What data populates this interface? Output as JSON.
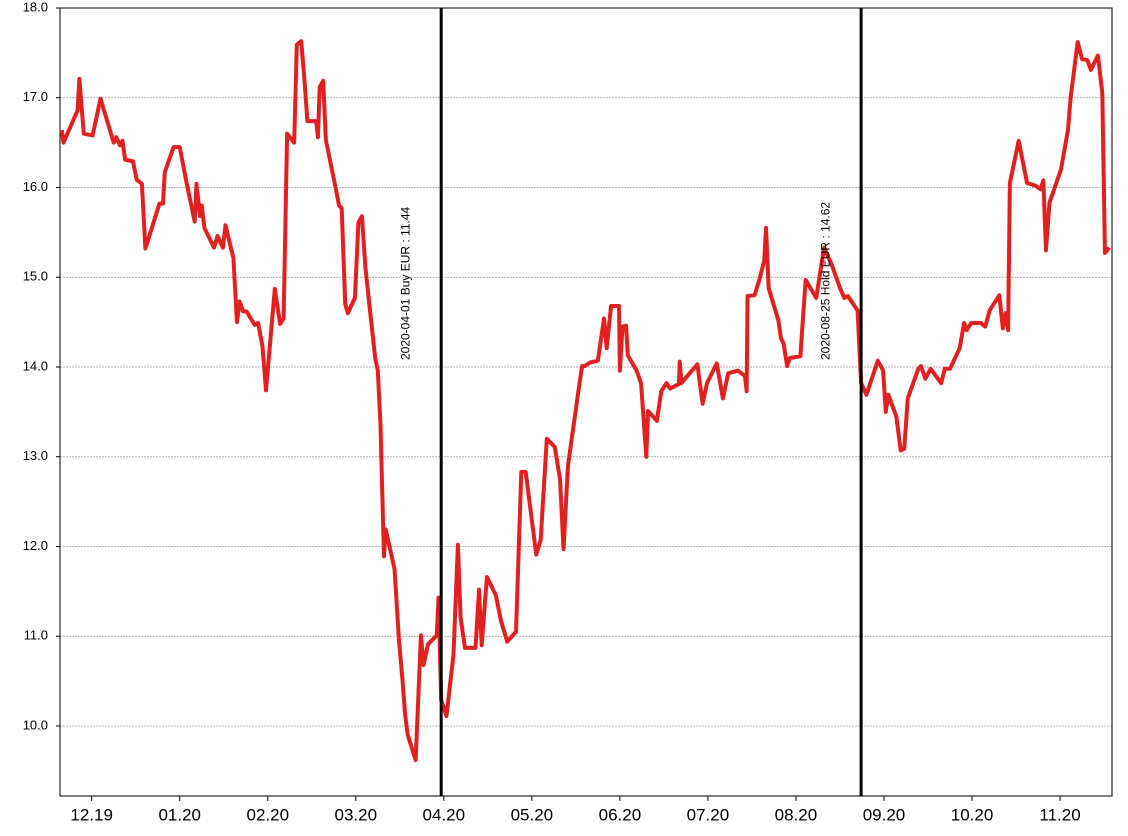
{
  "chart_data": {
    "type": "line",
    "x": [
      -0.34,
      -0.32,
      -0.16,
      -0.14,
      -0.09,
      0.01,
      0.1,
      0.25,
      0.28,
      0.32,
      0.35,
      0.38,
      0.47,
      0.51,
      0.57,
      0.61,
      0.77,
      0.81,
      0.83,
      0.93,
      1.0,
      1.07,
      1.17,
      1.19,
      1.23,
      1.25,
      1.28,
      1.39,
      1.43,
      1.49,
      1.52,
      1.61,
      1.65,
      1.68,
      1.72,
      1.76,
      1.85,
      1.89,
      1.94,
      1.98,
      2.08,
      2.14,
      2.18,
      2.22,
      2.3,
      2.33,
      2.38,
      2.42,
      2.45,
      2.55,
      2.57,
      2.59,
      2.63,
      2.66,
      2.76,
      2.81,
      2.84,
      2.88,
      2.91,
      2.99,
      3.03,
      3.07,
      3.11,
      3.22,
      3.25,
      3.28,
      3.32,
      3.34,
      3.44,
      3.49,
      3.53,
      3.56,
      3.59,
      3.68,
      3.74,
      3.77,
      3.82,
      3.92,
      3.94,
      3.97,
      4.03,
      4.11,
      4.16,
      4.19,
      4.24,
      4.36,
      4.4,
      4.43,
      4.49,
      4.59,
      4.65,
      4.72,
      4.82,
      4.88,
      4.93,
      5.05,
      5.1,
      5.17,
      5.26,
      5.32,
      5.36,
      5.41,
      5.52,
      5.57,
      5.6,
      5.66,
      5.75,
      5.82,
      5.85,
      5.9,
      5.99,
      6.0,
      6.03,
      6.07,
      6.09,
      6.19,
      6.24,
      6.3,
      6.32,
      6.42,
      6.47,
      6.53,
      6.57,
      6.67,
      6.68,
      6.7,
      6.74,
      6.88,
      6.94,
      6.99,
      7.1,
      7.17,
      7.23,
      7.34,
      7.42,
      7.44,
      7.45,
      7.53,
      7.59,
      7.64,
      7.66,
      7.69,
      7.8,
      7.83,
      7.86,
      7.9,
      7.93,
      8.05,
      8.11,
      8.23,
      8.32,
      8.41,
      8.5,
      8.55,
      8.59,
      8.7,
      8.74,
      8.8,
      8.93,
      8.99,
      9.02,
      9.05,
      9.14,
      9.19,
      9.23,
      9.27,
      9.39,
      9.42,
      9.47,
      9.53,
      9.65,
      9.69,
      9.75,
      9.86,
      9.91,
      9.94,
      9.99,
      10.1,
      10.15,
      10.2,
      10.31,
      10.35,
      10.38,
      10.41,
      10.43,
      10.53,
      10.625,
      10.72,
      10.78,
      10.81,
      10.84,
      10.88,
      11.01,
      11.09,
      11.12,
      11.2,
      11.25,
      11.31,
      11.35,
      11.43,
      11.48,
      11.51,
      11.56
    ],
    "series": [
      {
        "color": "#e32020",
        "values": [
          16.64,
          16.5,
          16.86,
          17.21,
          16.6,
          16.58,
          16.99,
          16.5,
          16.56,
          16.47,
          16.52,
          16.31,
          16.29,
          16.09,
          16.04,
          15.32,
          15.82,
          15.82,
          16.17,
          16.45,
          16.45,
          16.09,
          15.62,
          16.04,
          15.68,
          15.8,
          15.55,
          15.33,
          15.46,
          15.33,
          15.58,
          15.21,
          14.5,
          14.73,
          14.62,
          14.62,
          14.47,
          14.49,
          14.23,
          13.74,
          14.87,
          14.48,
          14.54,
          16.6,
          16.5,
          17.59,
          17.63,
          17.16,
          16.74,
          16.74,
          16.56,
          17.12,
          17.19,
          16.53,
          16.05,
          15.8,
          15.77,
          14.7,
          14.6,
          14.77,
          15.61,
          15.68,
          15.1,
          14.1,
          13.96,
          13.37,
          11.89,
          12.19,
          11.75,
          10.96,
          10.52,
          10.13,
          9.9,
          9.62,
          11.01,
          10.68,
          10.91,
          11.01,
          11.43,
          10.29,
          10.11,
          10.8,
          12.02,
          11.21,
          10.87,
          10.87,
          11.52,
          10.9,
          11.66,
          11.46,
          11.17,
          10.94,
          11.05,
          12.83,
          12.83,
          11.91,
          12.07,
          13.2,
          13.11,
          12.75,
          11.97,
          12.9,
          13.67,
          14.01,
          14.01,
          14.05,
          14.07,
          14.54,
          14.21,
          14.68,
          14.68,
          13.96,
          14.45,
          14.46,
          14.13,
          13.96,
          13.82,
          13.0,
          13.51,
          13.4,
          13.73,
          13.82,
          13.76,
          13.81,
          14.06,
          13.82,
          13.87,
          14.03,
          13.59,
          13.82,
          14.04,
          13.65,
          13.93,
          13.96,
          13.9,
          13.73,
          14.79,
          14.8,
          14.99,
          15.19,
          15.55,
          14.88,
          14.52,
          14.32,
          14.26,
          14.01,
          14.1,
          14.12,
          14.97,
          14.77,
          15.33,
          15.13,
          14.88,
          14.77,
          14.79,
          14.63,
          13.82,
          13.69,
          14.07,
          13.96,
          13.5,
          13.69,
          13.45,
          13.07,
          13.09,
          13.65,
          13.98,
          14.01,
          13.87,
          13.98,
          13.82,
          13.98,
          13.98,
          14.21,
          14.49,
          14.41,
          14.49,
          14.49,
          14.45,
          14.63,
          14.8,
          14.43,
          14.6,
          14.41,
          16.05,
          16.52,
          16.05,
          16.02,
          15.98,
          16.08,
          15.3,
          15.83,
          16.2,
          16.64,
          17.0,
          17.62,
          17.43,
          17.42,
          17.31,
          17.47,
          17.05,
          15.27,
          15.33
        ]
      }
    ],
    "xlim": [
      -0.36,
      11.59
    ],
    "xticks": [
      {
        "value": 0,
        "label": "12.19"
      },
      {
        "value": 1,
        "label": "01.20"
      },
      {
        "value": 2,
        "label": "02.20"
      },
      {
        "value": 3,
        "label": "03.20"
      },
      {
        "value": 4,
        "label": "04.20"
      },
      {
        "value": 5,
        "label": "05.20"
      },
      {
        "value": 6,
        "label": "06.20"
      },
      {
        "value": 7,
        "label": "07.20"
      },
      {
        "value": 8,
        "label": "08.20"
      },
      {
        "value": 9,
        "label": "09.20"
      },
      {
        "value": 10,
        "label": "10.20"
      },
      {
        "value": 11,
        "label": "11.20"
      }
    ],
    "ylim": [
      9.22,
      18.0
    ],
    "yticks": [
      {
        "value": 10,
        "label": "10.0"
      },
      {
        "value": 11,
        "label": "11.0"
      },
      {
        "value": 12,
        "label": "12.0"
      },
      {
        "value": 13,
        "label": "13.0"
      },
      {
        "value": 14,
        "label": "14.0"
      },
      {
        "value": 15,
        "label": "15.0"
      },
      {
        "value": 16,
        "label": "16.0"
      },
      {
        "value": 17,
        "label": "17.0"
      },
      {
        "value": 18,
        "label": "18.0"
      }
    ],
    "grid": true,
    "annotations": [
      {
        "x": 3.97,
        "label": "2020-04-01 Buy EUR : 11.44"
      },
      {
        "x": 8.74,
        "label": "2020-08-25 Hold EUR : 14.62"
      }
    ]
  }
}
